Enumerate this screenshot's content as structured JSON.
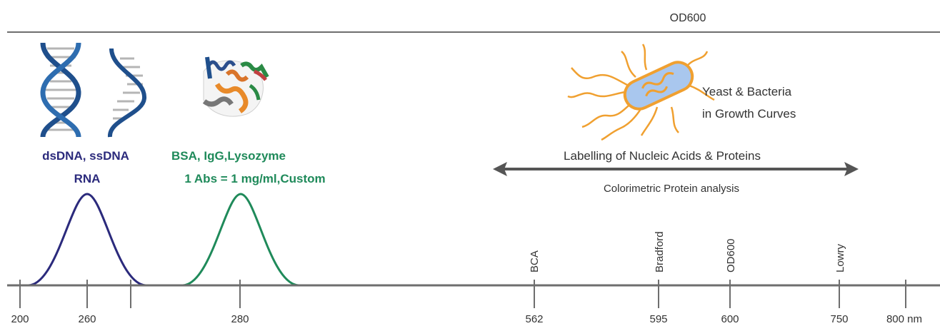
{
  "header": {
    "title": "OD600"
  },
  "colors": {
    "nucleic": "#2b2a7c",
    "protein": "#1f8a5a",
    "axis": "#6e6e6e",
    "text": "#333333",
    "bacteria_orange": "#f0a030",
    "dna_blue": "#1f4f8c"
  },
  "icons": {
    "dna": "dna-double-helix-icon",
    "rna": "rna-strand-icon",
    "protein": "protein-ribbon-structure-icon",
    "bacteria": "flagellated-bacterium-icon"
  },
  "labels": {
    "nucleic_line1": "dsDNA, ssDNA",
    "nucleic_line2": "RNA",
    "protein_line1": "BSA, IgG,Lysozyme",
    "protein_line2": "1 Abs = 1 mg/ml,Custom",
    "bacteria_line1": "Yeast & Bacteria",
    "bacteria_line2": "in Growth Curves",
    "range_top": "Labelling of Nucleic Acids & Proteins",
    "range_bottom": "Colorimetric Protein analysis"
  },
  "axis": {
    "ticks": [
      "200",
      "260",
      "280",
      "562",
      "595",
      "600",
      "750",
      "800 nm"
    ],
    "markers": [
      "BCA",
      "Bradford",
      "OD600",
      "Lowry"
    ]
  },
  "peaks": [
    {
      "name": "nucleic-acid-peak",
      "wavelength": 260
    },
    {
      "name": "protein-peak",
      "wavelength": 280
    }
  ]
}
